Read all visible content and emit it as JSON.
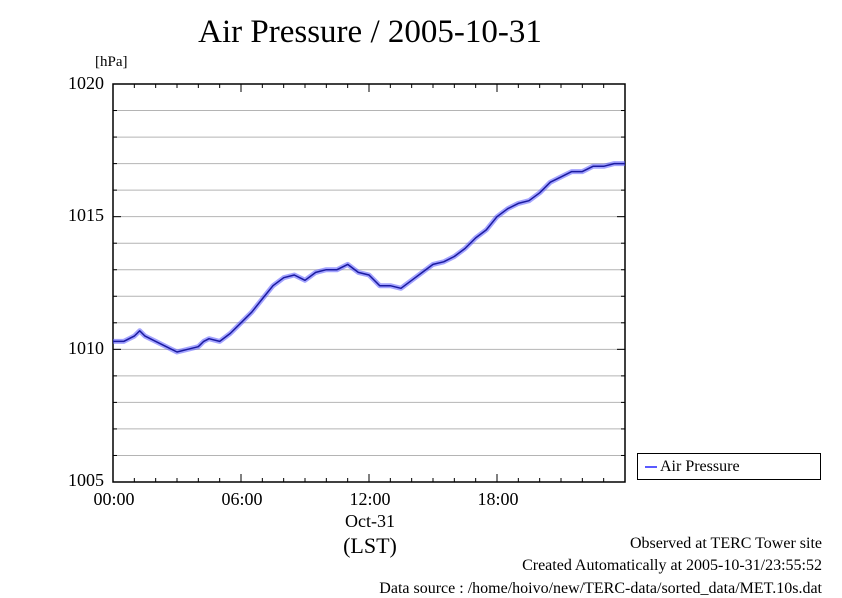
{
  "chart_data": {
    "type": "line",
    "title": "Air Pressure / 2005-10-31",
    "ylabel": "[hPa]",
    "xlabel": "(LST)",
    "date_label": "Oct-31",
    "ylim": [
      1005,
      1020
    ],
    "xlim_hours": [
      0,
      24
    ],
    "grid": true,
    "legend_position": "bottom-right, outside plot",
    "y_ticks": [
      "1005",
      "1010",
      "1015",
      "1020"
    ],
    "x_ticks": [
      "00:00",
      "06:00",
      "12:00",
      "18:00"
    ],
    "series": [
      {
        "name": "Air Pressure",
        "color": "#5a5aff",
        "x": [
          0,
          0.5,
          1,
          1.25,
          1.5,
          2,
          2.5,
          3,
          3.5,
          4,
          4.25,
          4.5,
          5,
          5.5,
          6,
          6.5,
          7,
          7.5,
          8,
          8.5,
          9,
          9.5,
          10,
          10.5,
          11,
          11.5,
          12,
          12.5,
          13,
          13.5,
          14,
          14.5,
          15,
          15.5,
          16,
          16.5,
          17,
          17.5,
          18,
          18.5,
          19,
          19.5,
          20,
          20.5,
          21,
          21.5,
          22,
          22.5,
          23,
          23.5,
          24
        ],
        "y": [
          1010.3,
          1010.3,
          1010.5,
          1010.7,
          1010.5,
          1010.3,
          1010.1,
          1009.9,
          1010.0,
          1010.1,
          1010.3,
          1010.4,
          1010.3,
          1010.6,
          1011.0,
          1011.4,
          1011.9,
          1012.4,
          1012.7,
          1012.8,
          1012.6,
          1012.9,
          1013.0,
          1013.0,
          1013.2,
          1012.9,
          1012.8,
          1012.4,
          1012.4,
          1012.3,
          1012.6,
          1012.9,
          1013.2,
          1013.3,
          1013.5,
          1013.8,
          1014.2,
          1014.5,
          1015.0,
          1015.3,
          1015.5,
          1015.6,
          1015.9,
          1016.3,
          1016.5,
          1016.7,
          1016.7,
          1016.9,
          1016.9,
          1017.0,
          1017.0
        ]
      }
    ]
  },
  "footer": {
    "observed": "Observed at TERC Tower site",
    "created": "Created Automatically at 2005-10-31/23:55:52",
    "source": "Data source : /home/hoivo/new/TERC-data/sorted_data/MET.10s.dat"
  }
}
